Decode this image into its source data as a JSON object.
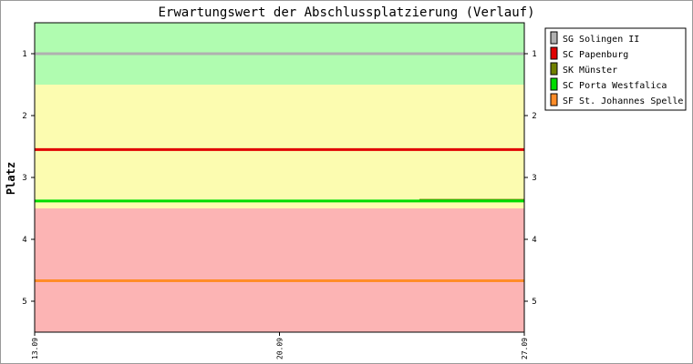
{
  "chart_data": {
    "type": "line",
    "title": "Erwartungswert der Abschlussplatzierung (Verlauf)",
    "ylabel": "Platz",
    "xlabel": "",
    "x_ticks": [
      "13.09",
      "20.09",
      "27.09"
    ],
    "x_range": [
      "13.09",
      "27.09"
    ],
    "ylim": [
      0.5,
      5.5
    ],
    "y_inverted": true,
    "y_ticks": [
      1,
      2,
      3,
      4,
      5
    ],
    "grid": false,
    "legend_position": "right",
    "zones": [
      {
        "from": 0.5,
        "to": 1.5,
        "color": "#b0fcb0"
      },
      {
        "from": 1.5,
        "to": 3.5,
        "color": "#fcfcb0"
      },
      {
        "from": 3.5,
        "to": 5.5,
        "color": "#fcb4b4"
      }
    ],
    "series": [
      {
        "name": "SG Solingen II",
        "color": "#b0b0b0",
        "points": [
          {
            "x": "13.09",
            "y": 1.0
          },
          {
            "x": "27.09",
            "y": 1.0
          }
        ]
      },
      {
        "name": "SC Papenburg",
        "color": "#e00000",
        "points": [
          {
            "x": "13.09",
            "y": 2.55
          },
          {
            "x": "27.09",
            "y": 2.55
          }
        ]
      },
      {
        "name": "SK Münster",
        "color": "#708000",
        "points": [
          {
            "x": "24.09",
            "y": 3.37
          },
          {
            "x": "27.09",
            "y": 3.37
          }
        ]
      },
      {
        "name": "SC Porta Westfalica",
        "color": "#00dd00",
        "points": [
          {
            "x": "13.09",
            "y": 3.38
          },
          {
            "x": "27.09",
            "y": 3.38
          }
        ]
      },
      {
        "name": "SF St. Johannes Spelle",
        "color": "#ff8c28",
        "points": [
          {
            "x": "13.09",
            "y": 4.67
          },
          {
            "x": "27.09",
            "y": 4.67
          }
        ]
      }
    ]
  }
}
